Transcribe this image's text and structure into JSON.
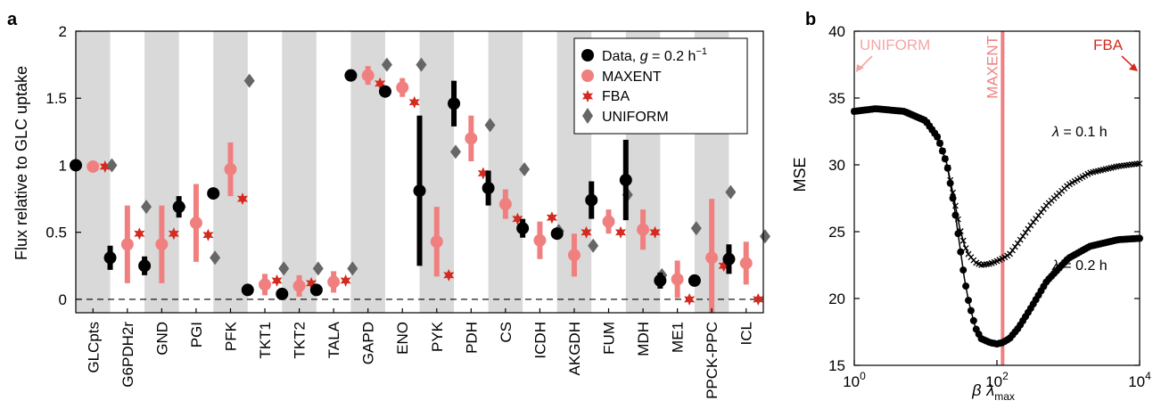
{
  "panels": {
    "a": "a",
    "b": "b"
  },
  "chart_data": [
    {
      "type": "scatter",
      "ylabel": "Flux relative to GLC uptake",
      "ylim": [
        -0.1,
        2.0
      ],
      "yticks": [
        "0",
        "0.5",
        "1",
        "1.5",
        "2"
      ],
      "ytick_values": [
        0,
        0.5,
        1,
        1.5,
        2
      ],
      "categories": [
        "GLCpts",
        "G6PDH2r",
        "GND",
        "PGI",
        "PFK",
        "TKT1",
        "TKT2",
        "TALA",
        "GAPD",
        "ENO",
        "PYK",
        "PDH",
        "CS",
        "ICDH",
        "AKGDH",
        "FUM",
        "MDH",
        "ME1",
        "PPCK-PPC",
        "ICL"
      ],
      "legend": {
        "position": "top-right",
        "data_prefix": "Data, ",
        "data_g": "g",
        "data_value": " = 0.2 h",
        "data_exp": "−1",
        "maxent": "MAXENT",
        "fba": "FBA",
        "uniform": "UNIFORM"
      },
      "colors": {
        "data": "#000000",
        "maxent": "#f08080",
        "fba": "#d42a20",
        "uniform": "#666666",
        "band": "#d9d9d9"
      },
      "series": [
        {
          "name": "Data, g = 0.2 h−1",
          "values": [
            1.0,
            0.31,
            0.25,
            0.69,
            0.79,
            0.07,
            0.04,
            0.07,
            1.67,
            1.55,
            0.81,
            1.46,
            0.83,
            0.53,
            0.49,
            0.74,
            0.89,
            0.14,
            0.14,
            0.3
          ],
          "err": [
            0.02,
            0.09,
            0.07,
            0.08,
            0.0,
            0.02,
            0.02,
            0.02,
            0.02,
            0.02,
            0.56,
            0.17,
            0.13,
            0.07,
            0.0,
            0.14,
            0.3,
            0.06,
            0.0,
            0.11
          ]
        },
        {
          "name": "MAXENT",
          "values": [
            0.99,
            0.41,
            0.41,
            0.57,
            0.97,
            0.11,
            0.1,
            0.13,
            1.67,
            1.58,
            0.43,
            1.2,
            0.71,
            0.44,
            0.33,
            0.58,
            0.52,
            0.15,
            0.31,
            0.27
          ],
          "err": [
            0.02,
            0.29,
            0.29,
            0.29,
            0.2,
            0.08,
            0.08,
            0.08,
            0.07,
            0.07,
            0.26,
            0.17,
            0.11,
            0.14,
            0.16,
            0.09,
            0.15,
            0.14,
            0.44,
            0.16
          ]
        },
        {
          "name": "FBA",
          "values": [
            0.99,
            0.49,
            0.49,
            0.48,
            0.75,
            0.14,
            0.12,
            0.14,
            1.61,
            1.47,
            0.18,
            0.94,
            0.6,
            0.61,
            0.5,
            0.5,
            0.5,
            0.0,
            0.25,
            0.0
          ]
        },
        {
          "name": "UNIFORM",
          "values": [
            1.0,
            0.69,
            0.69,
            0.31,
            1.63,
            0.23,
            0.23,
            0.23,
            1.75,
            1.75,
            1.1,
            1.3,
            0.97,
            0.51,
            0.4,
            0.78,
            0.18,
            0.53,
            0.8,
            0.47
          ]
        }
      ]
    },
    {
      "type": "line",
      "xlabel_beta": "β",
      "xlabel_lambda": "λ",
      "xlabel_sub": "max",
      "ylabel": "MSE",
      "xscale": "log",
      "xlim": [
        1,
        10000
      ],
      "ylim": [
        15,
        40
      ],
      "xticks": [
        {
          "base": "10",
          "exp": "0"
        },
        {
          "base": "10",
          "exp": "2"
        },
        {
          "base": "10",
          "exp": "4"
        }
      ],
      "xtick_values": [
        1,
        100,
        10000
      ],
      "yticks": [
        "15",
        "20",
        "25",
        "30",
        "35",
        "40"
      ],
      "ytick_values": [
        15,
        20,
        25,
        30,
        35,
        40
      ],
      "annotations": {
        "uniform": "UNIFORM",
        "fba": "FBA",
        "maxent": "MAXENT",
        "maxent_x": 120,
        "lambda01_sym": "λ",
        "lambda01_val": " = 0.1 h",
        "lambda02_sym": "λ",
        "lambda02_val": " = 0.2 h"
      },
      "colors": {
        "curve": "#000000",
        "maxent": "#f08080",
        "uniform": "#f4a6a6",
        "fba": "#d42a20"
      },
      "series": [
        {
          "name": "λ = 0.1 h",
          "x": [
            1,
            2,
            5,
            10,
            15,
            20,
            25,
            30,
            35,
            40,
            50,
            60,
            80,
            100,
            120,
            150,
            200,
            300,
            500,
            1000,
            2000,
            5000,
            10000
          ],
          "y": [
            34.0,
            34.2,
            34.0,
            33.3,
            32.0,
            30.0,
            27.5,
            25.3,
            24.0,
            23.3,
            22.7,
            22.5,
            22.6,
            22.8,
            23.0,
            23.3,
            24.2,
            25.5,
            27.0,
            28.5,
            29.4,
            29.9,
            30.1
          ],
          "marker": "x"
        },
        {
          "name": "λ = 0.2 h",
          "x": [
            1,
            2,
            5,
            10,
            15,
            20,
            25,
            30,
            35,
            40,
            50,
            60,
            80,
            100,
            120,
            150,
            200,
            300,
            500,
            1000,
            2000,
            5000,
            10000
          ],
          "y": [
            34.0,
            34.2,
            34.0,
            33.3,
            32.0,
            30.0,
            27.0,
            24.0,
            21.5,
            19.8,
            17.8,
            17.0,
            16.7,
            16.6,
            16.7,
            17.0,
            17.8,
            19.3,
            21.3,
            23.0,
            23.9,
            24.4,
            24.5
          ],
          "marker": "o"
        }
      ]
    }
  ]
}
